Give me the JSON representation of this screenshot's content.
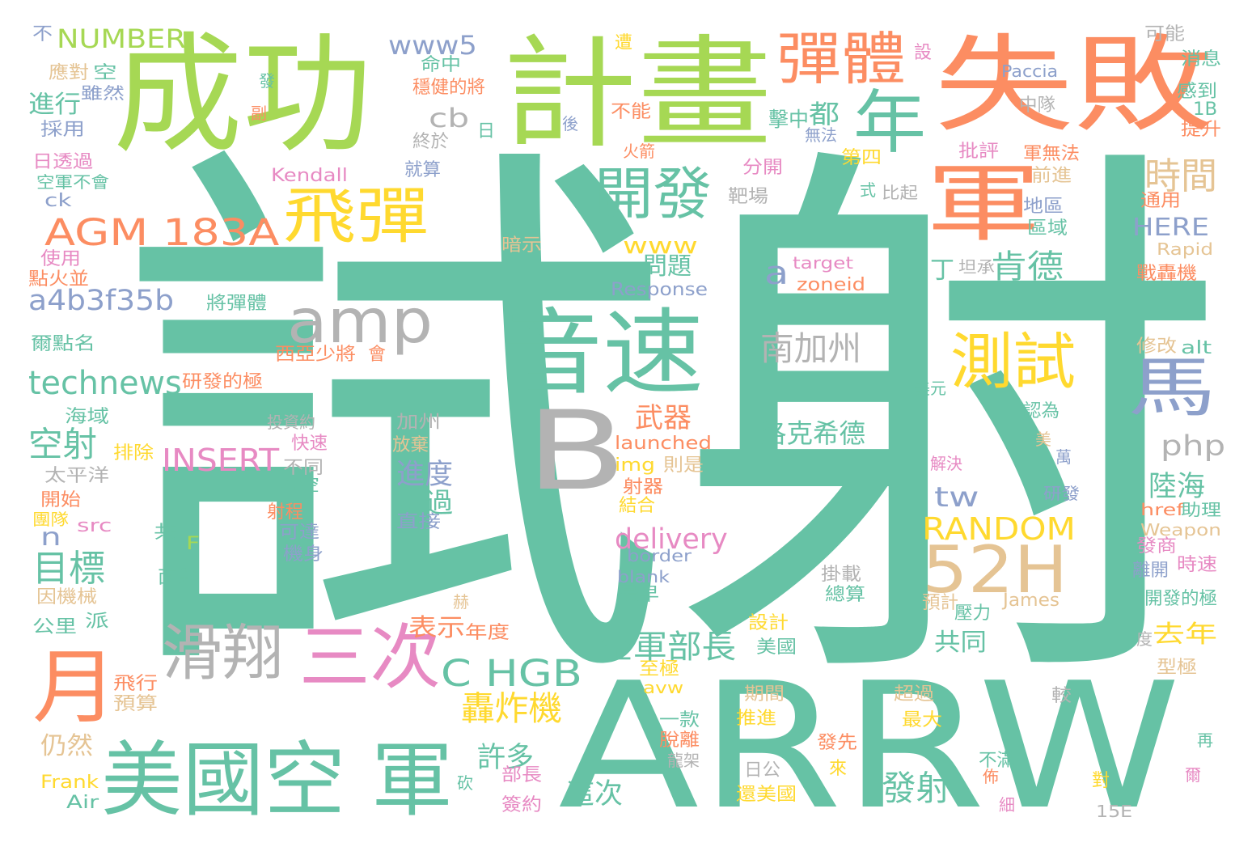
{
  "palette": {
    "green": "#66c2a5",
    "orange": "#fc8d62",
    "blue": "#8da0cb",
    "pink": "#e78ac3",
    "lime": "#a6d854",
    "yellow": "#ffd92f",
    "tan": "#e5c494",
    "gray": "#b3b3b3"
  },
  "words": [
    {
      "text": "試射",
      "color": "green"
    },
    {
      "text": "ARRW",
      "color": "green"
    },
    {
      "text": "成功",
      "color": "lime"
    },
    {
      "text": "計畫",
      "color": "lime"
    },
    {
      "text": "失敗",
      "color": "orange"
    },
    {
      "text": "B",
      "color": "gray"
    },
    {
      "text": "音速",
      "color": "green"
    },
    {
      "text": "美國空 軍",
      "color": "green"
    },
    {
      "text": "軍",
      "color": "orange"
    },
    {
      "text": "52H",
      "color": "tan"
    },
    {
      "text": "amp",
      "color": "gray"
    },
    {
      "text": "月",
      "color": "orange"
    },
    {
      "text": "滑翔",
      "color": "gray"
    },
    {
      "text": "三次",
      "color": "pink"
    },
    {
      "text": "彈體",
      "color": "orange"
    },
    {
      "text": "年",
      "color": "green"
    },
    {
      "text": "飛彈",
      "color": "yellow"
    },
    {
      "text": "開發",
      "color": "green"
    },
    {
      "text": "測試",
      "color": "yellow"
    },
    {
      "text": "馬",
      "color": "blue"
    },
    {
      "text": "AGM 183A",
      "color": "orange"
    },
    {
      "text": "C HGB",
      "color": "green"
    },
    {
      "text": "technews",
      "color": "green"
    },
    {
      "text": "南加州",
      "color": "gray"
    },
    {
      "text": "INSERT",
      "color": "pink"
    },
    {
      "text": "RANDOM",
      "color": "yellow"
    },
    {
      "text": "a4b3f35b",
      "color": "blue"
    },
    {
      "text": "www5",
      "color": "blue"
    },
    {
      "text": "空軍部長",
      "color": "green"
    },
    {
      "text": "轟炸機",
      "color": "yellow"
    },
    {
      "text": "空射",
      "color": "green"
    },
    {
      "text": "目標",
      "color": "green"
    },
    {
      "text": "時間",
      "color": "tan"
    },
    {
      "text": "肯德",
      "color": "green"
    },
    {
      "text": "洛克希德",
      "color": "green"
    },
    {
      "text": "delivery",
      "color": "pink"
    },
    {
      "text": "php",
      "color": "gray"
    },
    {
      "text": "發射",
      "color": "green"
    },
    {
      "text": "NUMBER",
      "color": "lime"
    },
    {
      "text": "cb",
      "color": "gray"
    },
    {
      "text": "www",
      "color": "yellow"
    },
    {
      "text": "HERE",
      "color": "blue"
    },
    {
      "text": "武器",
      "color": "orange"
    },
    {
      "text": "進度",
      "color": "blue"
    },
    {
      "text": "tw",
      "color": "blue"
    },
    {
      "text": "不過",
      "color": "green"
    },
    {
      "text": "陸海",
      "color": "green"
    },
    {
      "text": "去年",
      "color": "yellow"
    },
    {
      "text": "表示",
      "color": "orange"
    },
    {
      "text": "許多",
      "color": "green"
    },
    {
      "text": "這次",
      "color": "green"
    },
    {
      "text": "仍然",
      "color": "tan"
    },
    {
      "text": "共同",
      "color": "green"
    },
    {
      "text": "a",
      "color": "blue"
    },
    {
      "text": "n",
      "color": "blue"
    },
    {
      "text": "問題",
      "color": "green"
    },
    {
      "text": "進行",
      "color": "green"
    },
    {
      "text": "都",
      "color": "green"
    },
    {
      "text": "擊中",
      "color": "green"
    },
    {
      "text": "丁",
      "color": "green"
    },
    {
      "text": "Kendall",
      "color": "pink"
    },
    {
      "text": "launched",
      "color": "orange"
    },
    {
      "text": "Response",
      "color": "blue"
    },
    {
      "text": "target",
      "color": "pink"
    },
    {
      "text": "zoneid",
      "color": "orange"
    },
    {
      "text": "Paccia",
      "color": "blue"
    },
    {
      "text": "Rapid",
      "color": "tan"
    },
    {
      "text": "Weapon",
      "color": "tan"
    },
    {
      "text": "href",
      "color": "orange"
    },
    {
      "text": "助理",
      "color": "green"
    },
    {
      "text": "border",
      "color": "blue"
    },
    {
      "text": "blank",
      "color": "blue"
    },
    {
      "text": "img",
      "color": "yellow"
    },
    {
      "text": "src",
      "color": "pink"
    },
    {
      "text": "ck",
      "color": "blue"
    },
    {
      "text": "alt",
      "color": "green"
    },
    {
      "text": "avw",
      "color": "yellow"
    },
    {
      "text": "James",
      "color": "tan"
    },
    {
      "text": "Frank",
      "color": "yellow"
    },
    {
      "text": "Air",
      "color": "green"
    },
    {
      "text": "F",
      "color": "lime"
    },
    {
      "text": "1B",
      "color": "green"
    },
    {
      "text": "15E",
      "color": "gray"
    },
    {
      "text": "不",
      "color": "blue"
    },
    {
      "text": "應對",
      "color": "tan"
    },
    {
      "text": "空",
      "color": "green"
    },
    {
      "text": "雖然",
      "color": "blue"
    },
    {
      "text": "採用",
      "color": "blue"
    },
    {
      "text": "日透過",
      "color": "pink"
    },
    {
      "text": "空軍不會",
      "color": "green"
    },
    {
      "text": "使用",
      "color": "pink"
    },
    {
      "text": "點火並",
      "color": "orange"
    },
    {
      "text": "爾點名",
      "color": "green"
    },
    {
      "text": "海域",
      "color": "green"
    },
    {
      "text": "排除",
      "color": "yellow"
    },
    {
      "text": "太平洋",
      "color": "gray"
    },
    {
      "text": "開始",
      "color": "orange"
    },
    {
      "text": "團隊",
      "color": "yellow"
    },
    {
      "text": "因機械",
      "color": "tan"
    },
    {
      "text": "公里",
      "color": "green"
    },
    {
      "text": "派",
      "color": "green"
    },
    {
      "text": "飛行",
      "color": "orange"
    },
    {
      "text": "預算",
      "color": "tan"
    },
    {
      "text": "副",
      "color": "orange"
    },
    {
      "text": "發",
      "color": "green"
    },
    {
      "text": "命中",
      "color": "green"
    },
    {
      "text": "穩健的將",
      "color": "orange"
    },
    {
      "text": "日",
      "color": "green"
    },
    {
      "text": "終於",
      "color": "gray"
    },
    {
      "text": "就算",
      "color": "blue"
    },
    {
      "text": "後",
      "color": "blue"
    },
    {
      "text": "不能",
      "color": "orange"
    },
    {
      "text": "遭",
      "color": "yellow"
    },
    {
      "text": "無法",
      "color": "blue"
    },
    {
      "text": "火箭",
      "color": "orange"
    },
    {
      "text": "第四",
      "color": "yellow"
    },
    {
      "text": "分開",
      "color": "pink"
    },
    {
      "text": "靶場",
      "color": "gray"
    },
    {
      "text": "暗示",
      "color": "tan"
    },
    {
      "text": "將彈體",
      "color": "green"
    },
    {
      "text": "研發的極",
      "color": "orange"
    },
    {
      "text": "西亞少將",
      "color": "orange"
    },
    {
      "text": "會",
      "color": "orange"
    },
    {
      "text": "投資約",
      "color": "gray"
    },
    {
      "text": "加州",
      "color": "gray"
    },
    {
      "text": "放棄",
      "color": "tan"
    },
    {
      "text": "快速",
      "color": "pink"
    },
    {
      "text": "不同",
      "color": "gray"
    },
    {
      "text": "若空",
      "color": "green"
    },
    {
      "text": "射程",
      "color": "orange"
    },
    {
      "text": "可達",
      "color": "blue"
    },
    {
      "text": "機身",
      "color": "blue"
    },
    {
      "text": "直接",
      "color": "blue"
    },
    {
      "text": "共",
      "color": "green"
    },
    {
      "text": "面對",
      "color": "green"
    },
    {
      "text": "赫",
      "color": "tan"
    },
    {
      "text": "砍",
      "color": "green"
    },
    {
      "text": "部長",
      "color": "pink"
    },
    {
      "text": "簽約",
      "color": "pink"
    },
    {
      "text": "年度",
      "color": "orange"
    },
    {
      "text": "則是",
      "color": "tan"
    },
    {
      "text": "射器",
      "color": "orange"
    },
    {
      "text": "結合",
      "color": "yellow"
    },
    {
      "text": "最早",
      "color": "green"
    },
    {
      "text": "設計",
      "color": "yellow"
    },
    {
      "text": "美國",
      "color": "green"
    },
    {
      "text": "至極",
      "color": "yellow"
    },
    {
      "text": "期間",
      "color": "tan"
    },
    {
      "text": "推進",
      "color": "yellow"
    },
    {
      "text": "一款",
      "color": "green"
    },
    {
      "text": "脫離",
      "color": "orange"
    },
    {
      "text": "龍架",
      "color": "gray"
    },
    {
      "text": "日公",
      "color": "gray"
    },
    {
      "text": "還美國",
      "color": "yellow"
    },
    {
      "text": "總算",
      "color": "green"
    },
    {
      "text": "掛載",
      "color": "gray"
    },
    {
      "text": "預計",
      "color": "tan"
    },
    {
      "text": "壓力",
      "color": "green"
    },
    {
      "text": "超過",
      "color": "tan"
    },
    {
      "text": "最大",
      "color": "yellow"
    },
    {
      "text": "發先",
      "color": "orange"
    },
    {
      "text": "不滿",
      "color": "green"
    },
    {
      "text": "佈",
      "color": "orange"
    },
    {
      "text": "細",
      "color": "pink"
    },
    {
      "text": "來",
      "color": "yellow"
    },
    {
      "text": "對",
      "color": "yellow"
    },
    {
      "text": "較",
      "color": "gray"
    },
    {
      "text": "再",
      "color": "green"
    },
    {
      "text": "爾",
      "color": "pink"
    },
    {
      "text": "型極",
      "color": "tan"
    },
    {
      "text": "度",
      "color": "gray"
    },
    {
      "text": "開發的極",
      "color": "green"
    },
    {
      "text": "時速",
      "color": "pink"
    },
    {
      "text": "離開",
      "color": "blue"
    },
    {
      "text": "發商",
      "color": "pink"
    },
    {
      "text": "修改",
      "color": "tan"
    },
    {
      "text": "認為",
      "color": "green"
    },
    {
      "text": "美",
      "color": "tan"
    },
    {
      "text": "萬",
      "color": "blue"
    },
    {
      "text": "美元",
      "color": "green"
    },
    {
      "text": "解決",
      "color": "pink"
    },
    {
      "text": "研發",
      "color": "blue"
    },
    {
      "text": "戰轟機",
      "color": "orange"
    },
    {
      "text": "通用",
      "color": "orange"
    },
    {
      "text": "提升",
      "color": "orange"
    },
    {
      "text": "感到",
      "color": "green"
    },
    {
      "text": "消息",
      "color": "green"
    },
    {
      "text": "可能",
      "color": "gray"
    },
    {
      "text": "中隊",
      "color": "gray"
    },
    {
      "text": "設",
      "color": "pink"
    },
    {
      "text": "批評",
      "color": "pink"
    },
    {
      "text": "軍無法",
      "color": "orange"
    },
    {
      "text": "前進",
      "color": "tan"
    },
    {
      "text": "地區",
      "color": "blue"
    },
    {
      "text": "區域",
      "color": "green"
    },
    {
      "text": "式",
      "color": "green"
    },
    {
      "text": "比起",
      "color": "gray"
    },
    {
      "text": "坦承",
      "color": "gray"
    }
  ]
}
